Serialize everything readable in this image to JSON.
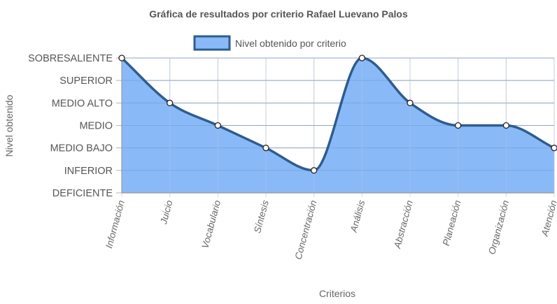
{
  "chart_data": {
    "type": "line",
    "title": "Gráfica de resultados por criterio Rafael Luevano Palos",
    "xlabel": "Criterios",
    "ylabel": "Nivel obtenido",
    "categories": [
      "Información",
      "Juicio",
      "Vocabulario",
      "Síntesis",
      "Concentración",
      "Análisis",
      "Abstracción",
      "Planeación",
      "Organización",
      "Atención"
    ],
    "y_levels": [
      "DEFICIENTE",
      "INFERIOR",
      "MEDIO BAJO",
      "MEDIO",
      "MEDIO ALTO",
      "SUPERIOR",
      "SOBRESALIENTE"
    ],
    "ylim": [
      0,
      6
    ],
    "series": [
      {
        "name": "Nivel obtenido por criterio",
        "values": [
          6,
          4,
          3,
          2,
          1,
          6,
          4,
          3,
          3,
          2
        ]
      }
    ],
    "legend_position": "top-center",
    "grid": true,
    "fill": true,
    "colors": {
      "fill": "#8ab9f7",
      "line": "#2e5c8f",
      "point_fill": "#ffffff",
      "point_stroke": "#222222"
    }
  }
}
